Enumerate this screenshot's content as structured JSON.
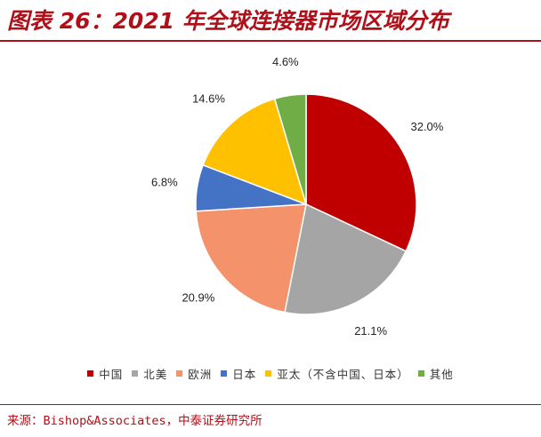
{
  "title": "图表 26：2021 年全球连接器市场区域分布",
  "source": "来源：Bishop&Associates，中泰证券研究所",
  "chart_data": {
    "type": "pie",
    "slices": [
      {
        "name": "中国",
        "value": 32.0,
        "label": "32.0%",
        "color": "#c00000"
      },
      {
        "name": "北美",
        "value": 21.1,
        "label": "21.1%",
        "color": "#a5a5a5"
      },
      {
        "name": "欧洲",
        "value": 20.9,
        "label": "20.9%",
        "color": "#f4926b"
      },
      {
        "name": "日本",
        "value": 6.8,
        "label": "6.8%",
        "color": "#4472c4"
      },
      {
        "name": "亚太（不含中国、日本）",
        "value": 14.6,
        "label": "14.6%",
        "color": "#ffc000"
      },
      {
        "name": "其他",
        "value": 4.6,
        "label": "4.6%",
        "color": "#70ad47"
      }
    ],
    "start": "12 o'clock",
    "direction": "clockwise",
    "legend_position": "bottom"
  }
}
